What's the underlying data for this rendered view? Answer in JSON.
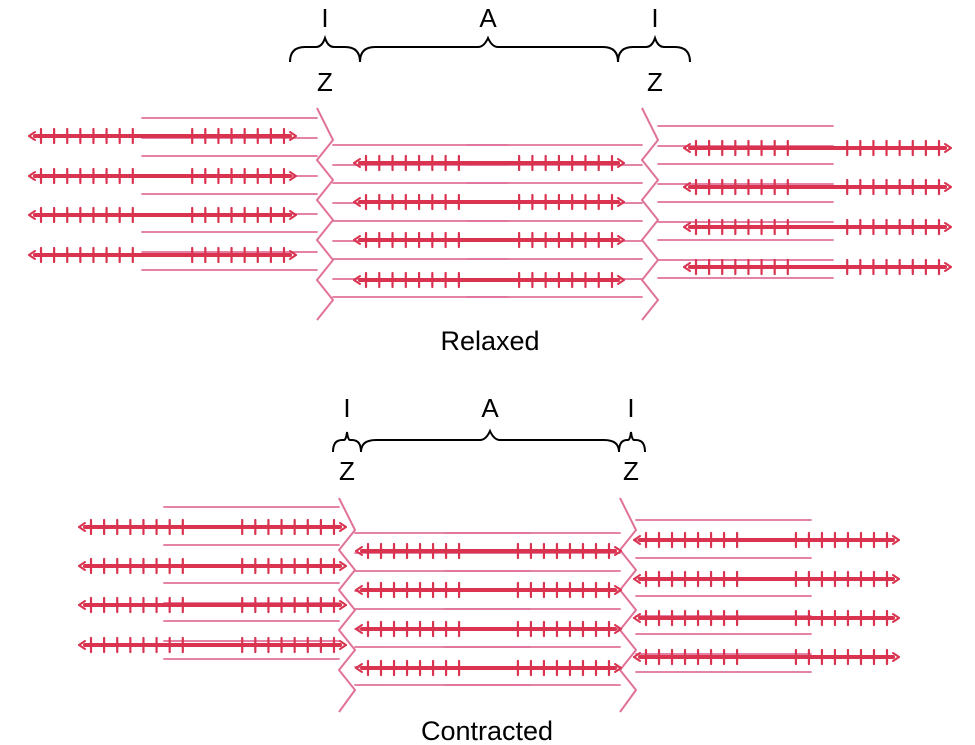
{
  "colors": {
    "thick_filament": "#d9334f",
    "thin_filament": "#e0729a",
    "bracket": "#000000"
  },
  "panels": [
    {
      "id": "relaxed",
      "caption": "Relaxed",
      "labels": {
        "i_left": "I",
        "a_band": "A",
        "i_right": "I",
        "z_left": "Z",
        "z_right": "Z"
      }
    },
    {
      "id": "contracted",
      "caption": "Contracted",
      "labels": {
        "i_left": "I",
        "a_band": "A",
        "i_right": "I",
        "z_left": "Z",
        "z_right": "Z"
      }
    }
  ]
}
